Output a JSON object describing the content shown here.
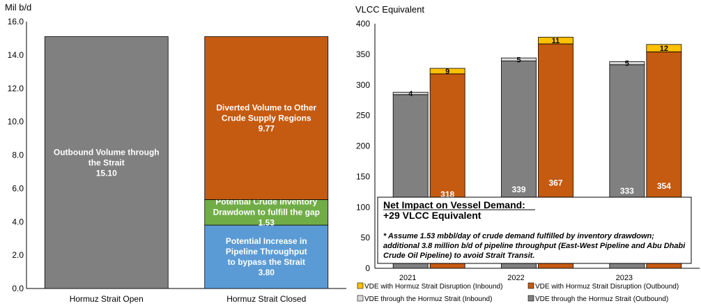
{
  "chart_data": [
    {
      "type": "bar",
      "stacked": true,
      "ylabel": "Mil b/d",
      "ylim": [
        0,
        16
      ],
      "yticks": [
        "0.0",
        "2.0",
        "4.0",
        "6.0",
        "8.0",
        "10.0",
        "12.0",
        "14.0",
        "16.0"
      ],
      "categories": [
        "Hormuz Strait Open",
        "Hormuz Strait Closed"
      ],
      "grid": false,
      "segments": [
        {
          "category": 0,
          "value": 15.1,
          "color": "#808080",
          "label_lines": [
            "Outbound Volume through",
            "the Strait",
            "15.10"
          ]
        },
        {
          "category": 1,
          "value": 3.8,
          "color": "#5b9bd5",
          "label_lines": [
            "Potential Increase in",
            "Pipeline Throughput",
            "to bypass the Strait",
            "3.80"
          ]
        },
        {
          "category": 1,
          "value": 1.53,
          "color": "#70ad47",
          "label_lines": [
            "Potential Crude Inventory",
            "Drawdown to fulfill the gap",
            "1.53"
          ]
        },
        {
          "category": 1,
          "value": 9.77,
          "color": "#c55a11",
          "label_lines": [
            "Diverted Volume to Other",
            "Crude Supply Regions",
            "9.77"
          ]
        }
      ]
    },
    {
      "type": "bar",
      "stacked": true,
      "ylabel": "VLCC Equivalent",
      "ylim": [
        0,
        400
      ],
      "yticks": [
        "0",
        "50",
        "100",
        "150",
        "200",
        "250",
        "300",
        "350",
        "400"
      ],
      "categories": [
        "2021",
        "2022",
        "2023"
      ],
      "legend_position": "bottom",
      "series": [
        {
          "name": "VDE through the Hormuz Strait (Outbound)",
          "group": "through",
          "stack_order": 0,
          "color": "#808080",
          "values": [
            284,
            339,
            333
          ],
          "labels": [
            "284",
            "339",
            "333"
          ]
        },
        {
          "name": "VDE through the Hormuz Strait (Inbound)",
          "group": "through",
          "stack_order": 1,
          "color": "#d9d9d9",
          "values": [
            4,
            5,
            5
          ],
          "labels": [
            "4",
            "5",
            "5"
          ]
        },
        {
          "name": "VDE  with Hormuz Strait Disruption (Outbound)",
          "group": "disruption",
          "stack_order": 0,
          "color": "#c55a11",
          "values": [
            318,
            367,
            354
          ],
          "labels": [
            "318",
            "367",
            "354"
          ]
        },
        {
          "name": "VDE with Hormuz Strait Disruption (Inbound)",
          "group": "disruption",
          "stack_order": 1,
          "color": "#ffc000",
          "values": [
            9,
            11,
            12
          ],
          "labels": [
            "9",
            "11",
            "12"
          ]
        }
      ],
      "legend_order": [
        3,
        2,
        1,
        0
      ],
      "annotation": {
        "title": "Net Impact on Vessel Demand:",
        "subtitle": "+29 VLCC Equivalent",
        "note": "* Assume 1.53 mbbl/day of crude demand fulfilled by inventory drawdown; additional 3.8 million b/d of pipeline throughput (East-West Pipeline and Abu Dhabi Crude Oil Pipeline) to avoid Strait Transit."
      }
    }
  ]
}
